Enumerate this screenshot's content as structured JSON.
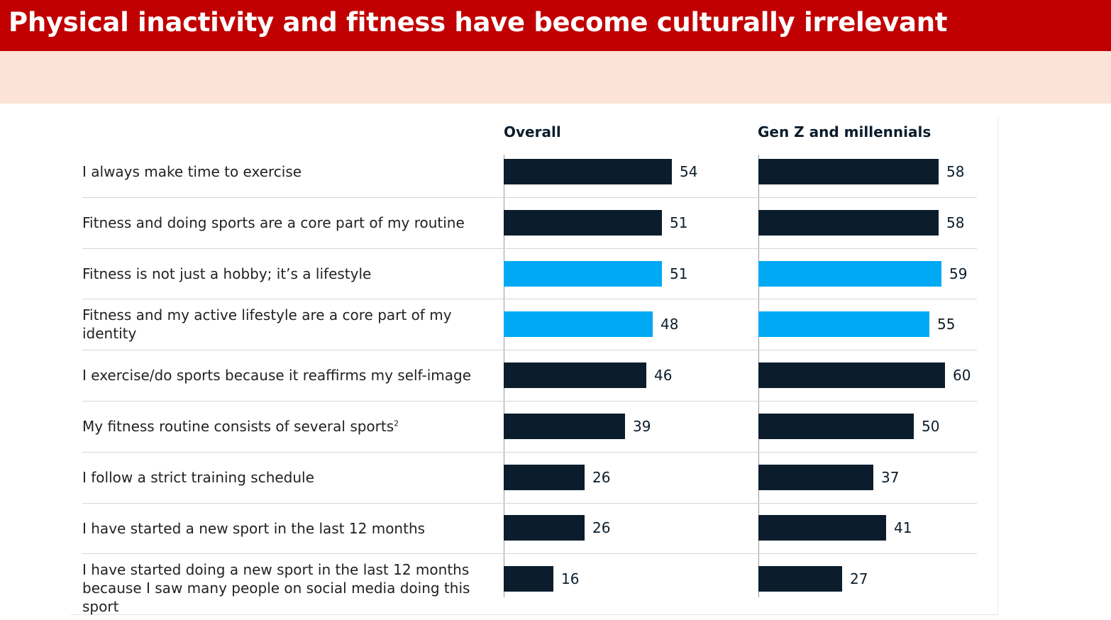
{
  "header": {
    "title": "Physical inactivity and fitness have become culturally irrelevant"
  },
  "colors": {
    "title_bar": "#c00000",
    "subtitle_band": "#fbe3d8",
    "bar_dark": "#0b1d2c",
    "bar_highlight": "#00a9f4"
  },
  "chart_data": {
    "type": "bar",
    "orientation": "horizontal",
    "categories": [
      "I always make time to exercise",
      "Fitness and doing sports are a core part of my routine",
      "Fitness is not just a hobby; it’s a lifestyle",
      "Fitness and my active lifestyle are a core part of my identity",
      "I exercise/do sports because it reaffirms my self-image",
      "My fitness routine consists of several sports",
      "I follow a strict training schedule",
      "I have started a new sport in the last 12 months",
      "I have started doing a new sport in the last 12 months because I saw many people on social media doing this sport"
    ],
    "category_superscripts": [
      "",
      "",
      "",
      "",
      "",
      "2",
      "",
      "",
      ""
    ],
    "series": [
      {
        "name": "Overall",
        "values": [
          54,
          51,
          51,
          48,
          46,
          39,
          26,
          26,
          16
        ]
      },
      {
        "name": "Gen Z and millennials",
        "values": [
          58,
          58,
          59,
          55,
          60,
          50,
          37,
          41,
          27
        ]
      }
    ],
    "highlighted_rows": [
      2,
      3
    ],
    "title": "",
    "xlabel": "",
    "ylabel": "",
    "grid": false,
    "legend": "column headers"
  }
}
